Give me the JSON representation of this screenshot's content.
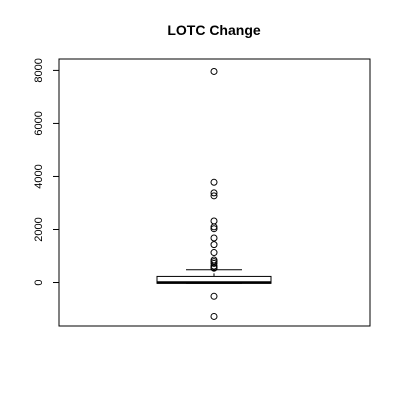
{
  "chart_data": {
    "type": "boxplot",
    "title": "LOTC Change",
    "xlabel": "",
    "ylabel": "",
    "ylim": [
      -1640,
      8430
    ],
    "yticks": [
      0,
      2000,
      4000,
      6000,
      8000
    ],
    "ytick_labels": [
      "0",
      "2000",
      "4000",
      "6000",
      "8000"
    ],
    "grid": false,
    "box": {
      "min": -30,
      "q1": -30,
      "median": 0,
      "q3": 230,
      "max": 480
    },
    "outliers": [
      7960,
      3780,
      3380,
      3270,
      2320,
      2100,
      2030,
      1680,
      1430,
      1130,
      850,
      790,
      720,
      620,
      560,
      540,
      -520,
      -1280
    ]
  }
}
